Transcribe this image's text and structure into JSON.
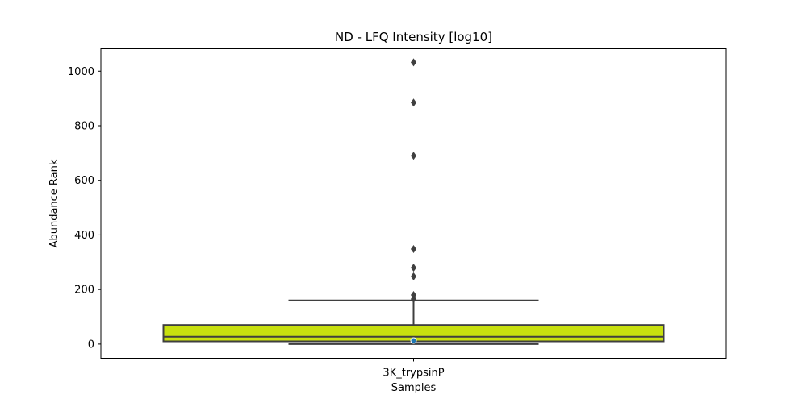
{
  "chart_data": {
    "type": "box",
    "title": "ND - LFQ Intensity [log10]",
    "xlabel": "Samples",
    "ylabel": "Abundance Rank",
    "categories": [
      "3K_trypsinP"
    ],
    "ylim": [
      -52,
      1082
    ],
    "yticks": [
      0,
      200,
      400,
      600,
      800,
      1000
    ],
    "grid": false,
    "boxes": [
      {
        "category": "3K_trypsinP",
        "whisker_low": 0,
        "q1": 10,
        "median": 27,
        "q3": 70,
        "whisker_high": 160,
        "mean": 13,
        "outliers": [
          165,
          180,
          248,
          280,
          348,
          690,
          885,
          1032
        ]
      }
    ],
    "colors": {
      "box_fill": "#c8e00f",
      "line": "#3f3f3f",
      "mean_marker": "#1f77b4",
      "outlier": "#3f3f3f"
    }
  }
}
